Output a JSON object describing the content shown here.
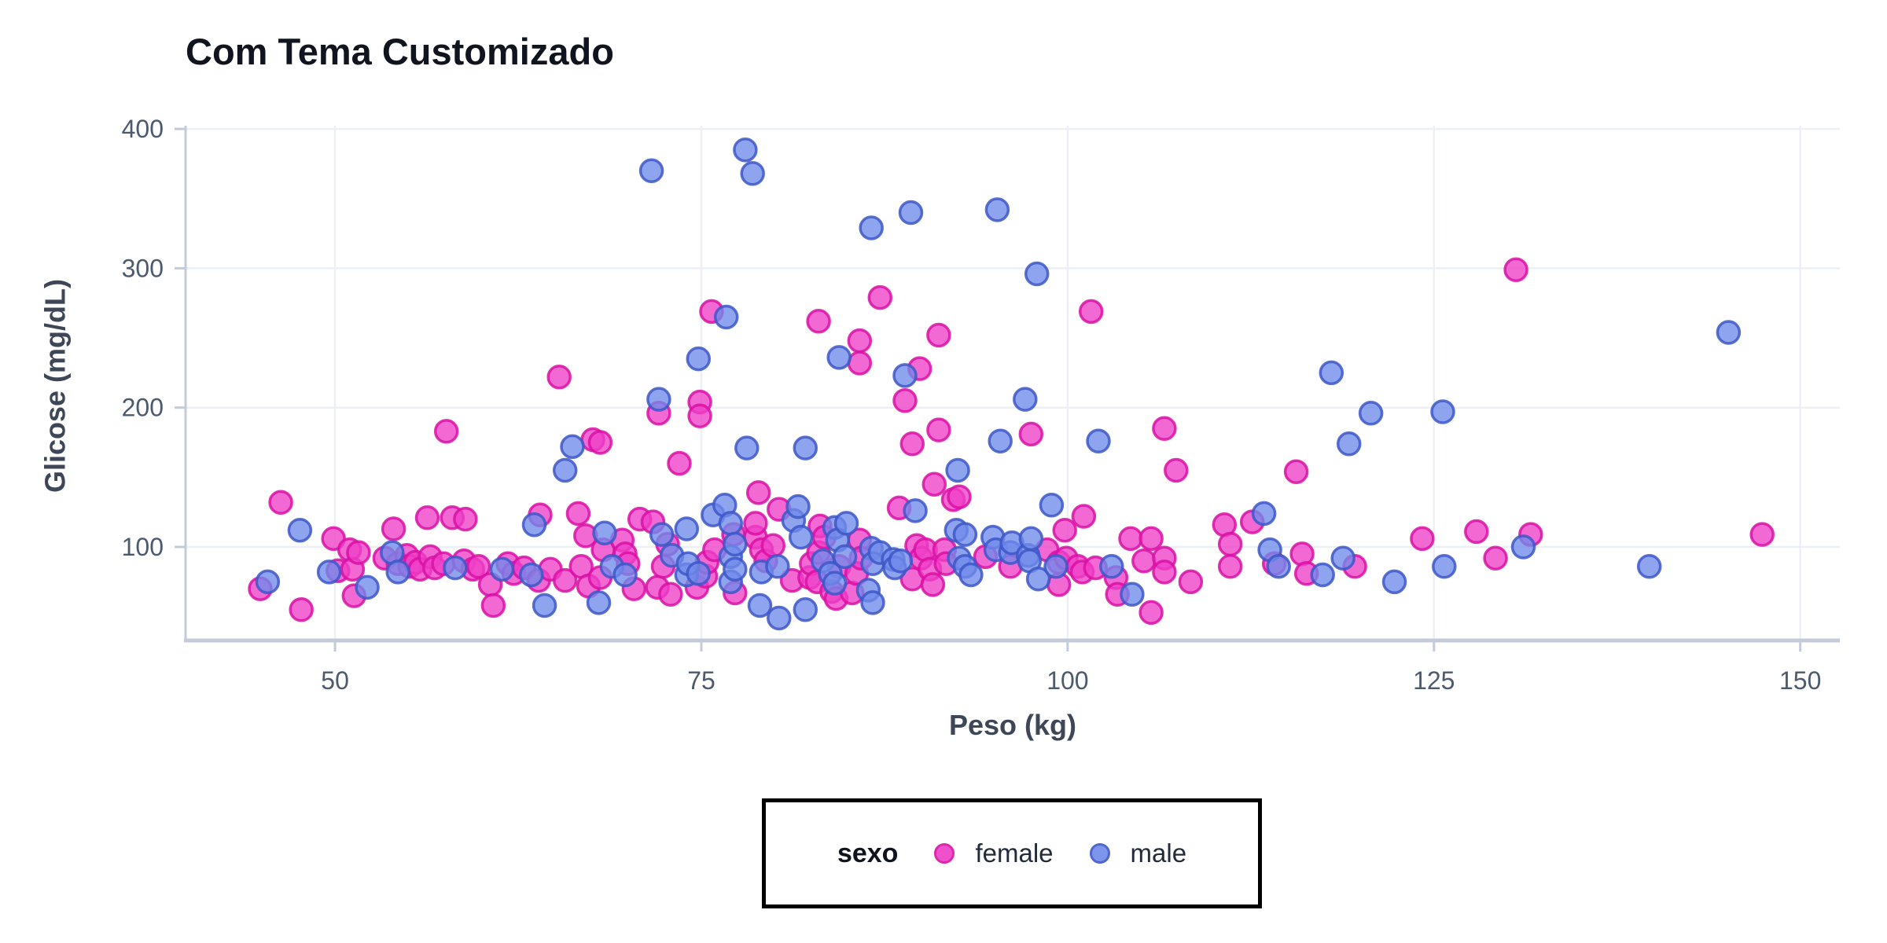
{
  "title": "Com Tema Customizado",
  "x_axis": {
    "label": "Peso (kg)",
    "ticks": [
      50,
      75,
      100,
      125,
      150
    ]
  },
  "y_axis": {
    "label": "Glicose (mg/dL)",
    "ticks": [
      100,
      200,
      300,
      400
    ]
  },
  "legend": {
    "title": "sexo",
    "position": "bottom",
    "border_color": "#000000"
  },
  "colors": {
    "title_text": "#10141f",
    "axis_title_text": "#3d4758",
    "tick_label_text": "#4c5a6e",
    "gridline": "#ecf0f5",
    "axis_line": "#c3cbd8",
    "female_fill": "#ee3fc8",
    "female_stroke": "#d911a5",
    "male_fill": "#6f8aeb",
    "male_stroke": "#3d57c8"
  },
  "chart_data": {
    "type": "scatter",
    "title": "Com Tema Customizado",
    "xlabel": "Peso (kg)",
    "ylabel": "Glicose (mg/dL)",
    "xlim": [
      39.8,
      152.7
    ],
    "ylim": [
      32.9,
      402.3
    ],
    "x_ticks": [
      50,
      75,
      100,
      125,
      150
    ],
    "y_ticks": [
      100,
      200,
      300,
      400
    ],
    "grid": true,
    "legend_position": "bottom",
    "marker": {
      "radius": 14,
      "fill_opacity": 0.78,
      "stroke_width": 3.5
    },
    "series": [
      {
        "name": "female",
        "fill": "#ee3fc8",
        "stroke": "#d911a5",
        "points": [
          [
            44.9,
            70
          ],
          [
            46.3,
            132
          ],
          [
            47.7,
            55
          ],
          [
            49.9,
            106
          ],
          [
            50.2,
            83
          ],
          [
            51.0,
            98
          ],
          [
            51.2,
            84
          ],
          [
            51.3,
            65
          ],
          [
            51.6,
            96
          ],
          [
            53.4,
            92
          ],
          [
            54.0,
            113
          ],
          [
            54.3,
            88
          ],
          [
            54.9,
            94
          ],
          [
            55.1,
            86
          ],
          [
            55.5,
            89
          ],
          [
            55.8,
            84
          ],
          [
            56.3,
            121
          ],
          [
            56.5,
            93
          ],
          [
            56.8,
            85
          ],
          [
            57.4,
            88
          ],
          [
            57.6,
            183
          ],
          [
            58.0,
            121
          ],
          [
            58.8,
            90
          ],
          [
            58.9,
            120
          ],
          [
            59.4,
            84
          ],
          [
            59.8,
            86
          ],
          [
            60.6,
            73
          ],
          [
            60.8,
            58
          ],
          [
            61.8,
            88
          ],
          [
            62.2,
            81
          ],
          [
            62.9,
            85
          ],
          [
            63.9,
            76
          ],
          [
            64.0,
            123
          ],
          [
            64.7,
            84
          ],
          [
            65.3,
            222
          ],
          [
            65.7,
            76
          ],
          [
            66.6,
            124
          ],
          [
            66.8,
            86
          ],
          [
            67.1,
            108
          ],
          [
            67.3,
            72
          ],
          [
            67.6,
            177
          ],
          [
            68.1,
            175
          ],
          [
            68.1,
            78
          ],
          [
            68.3,
            98
          ],
          [
            69.6,
            105
          ],
          [
            69.8,
            95
          ],
          [
            70.0,
            88
          ],
          [
            70.4,
            70
          ],
          [
            70.8,
            120
          ],
          [
            71.7,
            118
          ],
          [
            72.0,
            71
          ],
          [
            72.1,
            196
          ],
          [
            72.4,
            86
          ],
          [
            72.7,
            102
          ],
          [
            72.9,
            66
          ],
          [
            73.5,
            160
          ],
          [
            74.7,
            71
          ],
          [
            74.9,
            204
          ],
          [
            74.9,
            194
          ],
          [
            75.3,
            79
          ],
          [
            75.4,
            89
          ],
          [
            75.7,
            269
          ],
          [
            75.9,
            98
          ],
          [
            77.2,
            109
          ],
          [
            77.3,
            67
          ],
          [
            78.7,
            107
          ],
          [
            78.7,
            117
          ],
          [
            78.9,
            139
          ],
          [
            79.1,
            98
          ],
          [
            79.4,
            90
          ],
          [
            79.9,
            101
          ],
          [
            80.3,
            127
          ],
          [
            81.2,
            76
          ],
          [
            82.4,
            78
          ],
          [
            82.5,
            88
          ],
          [
            82.9,
            75
          ],
          [
            83.0,
            262
          ],
          [
            83.0,
            96
          ],
          [
            83.1,
            115
          ],
          [
            83.4,
            107
          ],
          [
            83.9,
            68
          ],
          [
            84.2,
            63
          ],
          [
            84.4,
            86
          ],
          [
            85.3,
            67
          ],
          [
            85.6,
            81
          ],
          [
            85.8,
            248
          ],
          [
            85.8,
            232
          ],
          [
            85.8,
            105
          ],
          [
            85.9,
            92
          ],
          [
            87.2,
            279
          ],
          [
            88.5,
            128
          ],
          [
            88.9,
            205
          ],
          [
            89.4,
            174
          ],
          [
            89.4,
            77
          ],
          [
            89.7,
            101
          ],
          [
            89.9,
            228
          ],
          [
            90.0,
            92
          ],
          [
            90.3,
            98
          ],
          [
            90.6,
            84
          ],
          [
            90.8,
            73
          ],
          [
            90.9,
            145
          ],
          [
            91.2,
            252
          ],
          [
            91.2,
            184
          ],
          [
            91.6,
            98
          ],
          [
            91.7,
            88
          ],
          [
            92.2,
            134
          ],
          [
            92.6,
            136
          ],
          [
            94.4,
            93
          ],
          [
            96.1,
            86
          ],
          [
            97.5,
            181
          ],
          [
            98.6,
            98
          ],
          [
            99.4,
            89
          ],
          [
            99.4,
            73
          ],
          [
            99.8,
            112
          ],
          [
            99.9,
            92
          ],
          [
            100.7,
            86
          ],
          [
            101.0,
            82
          ],
          [
            101.1,
            122
          ],
          [
            101.6,
            269
          ],
          [
            101.9,
            85
          ],
          [
            103.3,
            78
          ],
          [
            103.4,
            66
          ],
          [
            104.3,
            106
          ],
          [
            105.2,
            90
          ],
          [
            105.7,
            106
          ],
          [
            105.7,
            53
          ],
          [
            106.6,
            185
          ],
          [
            106.6,
            92
          ],
          [
            106.6,
            82
          ],
          [
            107.4,
            155
          ],
          [
            108.4,
            75
          ],
          [
            110.7,
            116
          ],
          [
            111.1,
            102
          ],
          [
            111.1,
            86
          ],
          [
            112.6,
            118
          ],
          [
            114.1,
            88
          ],
          [
            115.6,
            154
          ],
          [
            116.0,
            95
          ],
          [
            116.3,
            81
          ],
          [
            119.6,
            86
          ],
          [
            124.2,
            106
          ],
          [
            127.9,
            111
          ],
          [
            129.2,
            92
          ],
          [
            130.6,
            299
          ],
          [
            131.6,
            109
          ],
          [
            147.4,
            109
          ]
        ]
      },
      {
        "name": "male",
        "fill": "#6f8aeb",
        "stroke": "#3d57c8",
        "points": [
          [
            45.4,
            75
          ],
          [
            47.6,
            112
          ],
          [
            49.6,
            82
          ],
          [
            52.2,
            71
          ],
          [
            53.9,
            96
          ],
          [
            54.3,
            82
          ],
          [
            58.2,
            85
          ],
          [
            61.4,
            84
          ],
          [
            63.4,
            80
          ],
          [
            63.6,
            116
          ],
          [
            64.3,
            58
          ],
          [
            65.7,
            155
          ],
          [
            66.2,
            172
          ],
          [
            68.0,
            60
          ],
          [
            68.4,
            110
          ],
          [
            68.9,
            86
          ],
          [
            69.8,
            80
          ],
          [
            71.6,
            370
          ],
          [
            72.1,
            206
          ],
          [
            72.3,
            109
          ],
          [
            73.0,
            94
          ],
          [
            74.0,
            113
          ],
          [
            74.0,
            80
          ],
          [
            74.1,
            88
          ],
          [
            74.8,
            235
          ],
          [
            74.8,
            81
          ],
          [
            75.8,
            123
          ],
          [
            76.6,
            130
          ],
          [
            76.7,
            265
          ],
          [
            77.0,
            117
          ],
          [
            77.0,
            93
          ],
          [
            77.0,
            75
          ],
          [
            77.3,
            102
          ],
          [
            77.3,
            84
          ],
          [
            78.0,
            385
          ],
          [
            78.1,
            171
          ],
          [
            78.5,
            368
          ],
          [
            79.0,
            58
          ],
          [
            79.1,
            82
          ],
          [
            80.2,
            86
          ],
          [
            80.3,
            49
          ],
          [
            81.3,
            119
          ],
          [
            81.6,
            129
          ],
          [
            81.8,
            107
          ],
          [
            82.1,
            171
          ],
          [
            82.1,
            55
          ],
          [
            83.3,
            90
          ],
          [
            83.8,
            81
          ],
          [
            84.1,
            114
          ],
          [
            84.1,
            74
          ],
          [
            84.3,
            105
          ],
          [
            84.4,
            236
          ],
          [
            84.8,
            93
          ],
          [
            84.9,
            117
          ],
          [
            86.4,
            69
          ],
          [
            86.6,
            329
          ],
          [
            86.6,
            99
          ],
          [
            86.7,
            88
          ],
          [
            86.7,
            60
          ],
          [
            87.2,
            96
          ],
          [
            88.1,
            91
          ],
          [
            88.2,
            85
          ],
          [
            88.6,
            90
          ],
          [
            88.9,
            223
          ],
          [
            89.3,
            340
          ],
          [
            89.6,
            126
          ],
          [
            92.4,
            112
          ],
          [
            92.5,
            155
          ],
          [
            92.6,
            92
          ],
          [
            93.0,
            109
          ],
          [
            93.0,
            86
          ],
          [
            93.4,
            80
          ],
          [
            94.9,
            107
          ],
          [
            95.1,
            98
          ],
          [
            95.2,
            342
          ],
          [
            95.4,
            176
          ],
          [
            96.1,
            96
          ],
          [
            96.2,
            103
          ],
          [
            97.1,
            206
          ],
          [
            97.3,
            94
          ],
          [
            97.4,
            90
          ],
          [
            97.5,
            106
          ],
          [
            97.9,
            296
          ],
          [
            98.0,
            77
          ],
          [
            98.9,
            130
          ],
          [
            99.2,
            86
          ],
          [
            102.1,
            176
          ],
          [
            103.0,
            86
          ],
          [
            104.4,
            66
          ],
          [
            113.4,
            124
          ],
          [
            113.8,
            98
          ],
          [
            114.4,
            86
          ],
          [
            117.4,
            80
          ],
          [
            118.0,
            225
          ],
          [
            118.8,
            92
          ],
          [
            119.2,
            174
          ],
          [
            120.7,
            196
          ],
          [
            122.3,
            75
          ],
          [
            125.6,
            197
          ],
          [
            125.7,
            86
          ],
          [
            131.1,
            100
          ],
          [
            139.7,
            86
          ],
          [
            145.1,
            254
          ]
        ]
      }
    ]
  }
}
